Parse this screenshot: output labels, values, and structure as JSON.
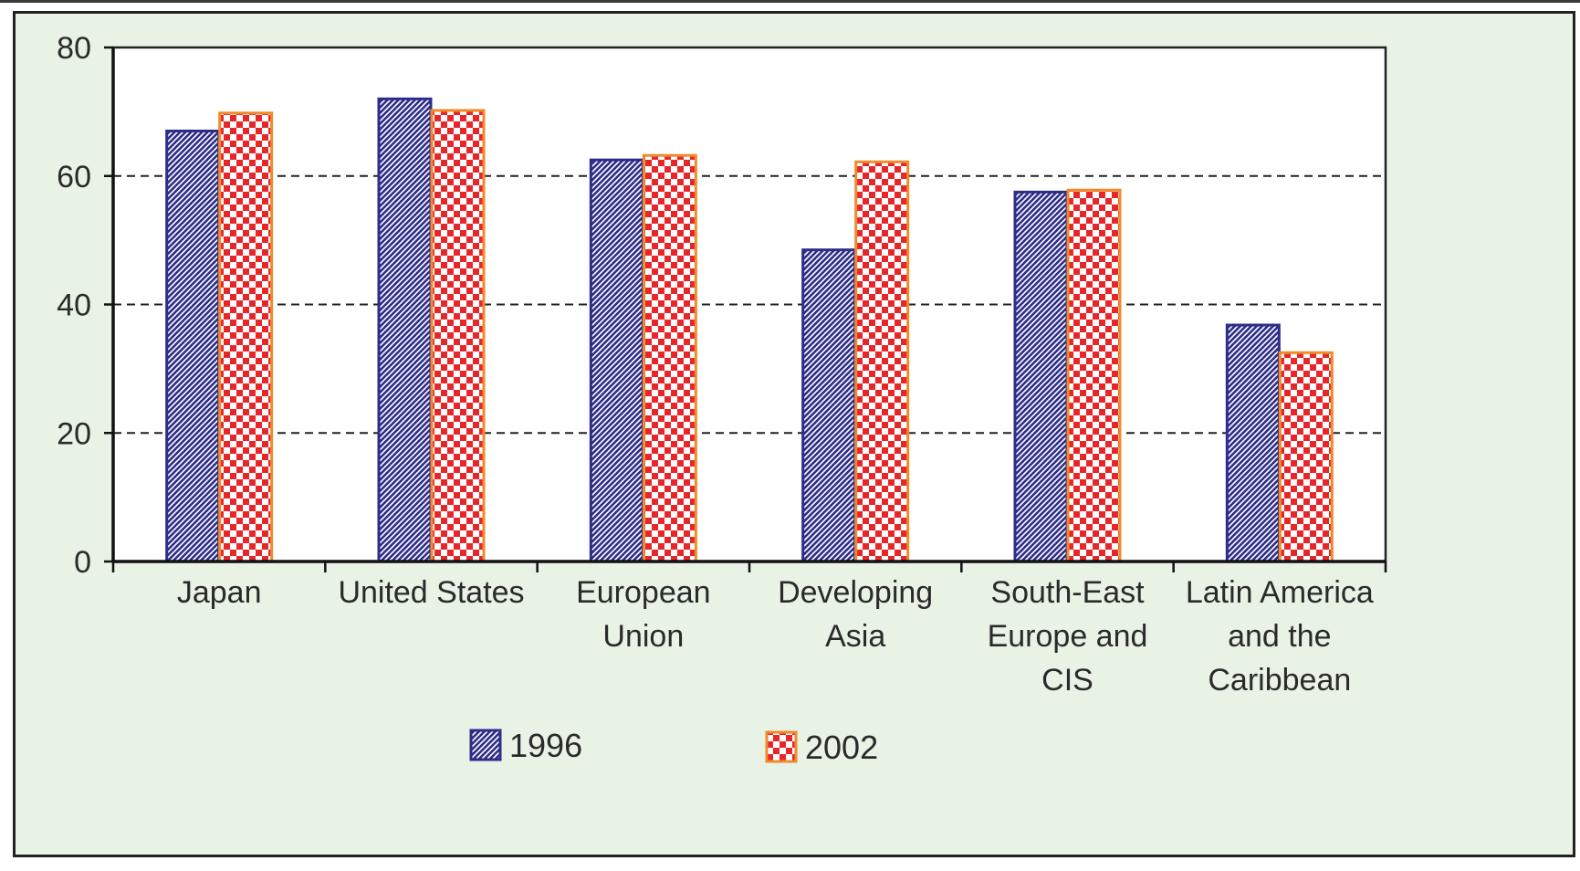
{
  "chart_data": {
    "type": "bar",
    "categories": [
      [
        "Japan"
      ],
      [
        "United States"
      ],
      [
        "European",
        "Union"
      ],
      [
        "Developing",
        "Asia"
      ],
      [
        "South-East",
        "Europe and",
        "CIS"
      ],
      [
        "Latin America",
        "and the",
        "Caribbean"
      ]
    ],
    "series": [
      {
        "name": "1996",
        "values": [
          67,
          72,
          62.5,
          48.5,
          57.5,
          36.8
        ],
        "color": "#2e2e8a",
        "pattern": "diagonal-blue"
      },
      {
        "name": "2002",
        "values": [
          69.8,
          70.2,
          63.2,
          62.2,
          57.8,
          32.5
        ],
        "color": "#e8262a",
        "pattern": "checker-red"
      }
    ],
    "ylim": [
      0,
      80
    ],
    "yticks": [
      "0",
      "20",
      "40",
      "60",
      "80"
    ],
    "grid": "dashed horizontal at 20, 40, 60",
    "legend": "bottom-center",
    "title": "",
    "xlabel": "",
    "ylabel": ""
  }
}
